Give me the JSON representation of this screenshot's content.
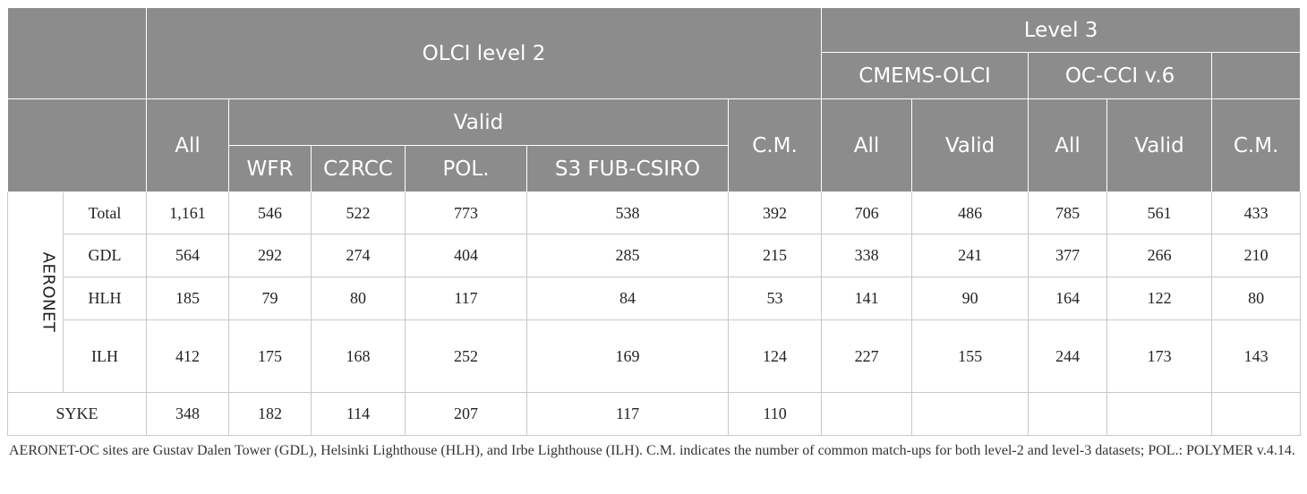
{
  "header": {
    "olci_level2": "OLCI level 2",
    "level3": "Level 3",
    "cmems_olci": "CMEMS-OLCI",
    "oc_cci": "OC-CCI v.6",
    "all": "All",
    "valid": "Valid",
    "cm": "C.M.",
    "wfr": "WFR",
    "c2rcc": "C2RCC",
    "pol": "POL.",
    "s3fub": "S3 FUB-CSIRO"
  },
  "group_label": "AERONET",
  "rows": [
    {
      "label": "Total",
      "values": [
        "1,161",
        "546",
        "522",
        "773",
        "538",
        "392",
        "706",
        "486",
        "785",
        "561",
        "433"
      ]
    },
    {
      "label": "GDL",
      "values": [
        "564",
        "292",
        "274",
        "404",
        "285",
        "215",
        "338",
        "241",
        "377",
        "266",
        "210"
      ]
    },
    {
      "label": "HLH",
      "values": [
        "185",
        "79",
        "80",
        "117",
        "84",
        "53",
        "141",
        "90",
        "164",
        "122",
        "80"
      ]
    },
    {
      "label": "ILH",
      "values": [
        "412",
        "175",
        "168",
        "252",
        "169",
        "124",
        "227",
        "155",
        "244",
        "173",
        "143"
      ]
    }
  ],
  "syke": {
    "label": "SYKE",
    "values": [
      "348",
      "182",
      "114",
      "207",
      "117",
      "110",
      "",
      "",
      "",
      "",
      ""
    ]
  },
  "footnote": "AERONET-OC sites are Gustav Dalen Tower (GDL), Helsinki Lighthouse (HLH), and Irbe Lighthouse (ILH). C.M. indicates the number of common match-ups for both level-2 and level-3 datasets; POL.: POLYMER v.4.14."
}
